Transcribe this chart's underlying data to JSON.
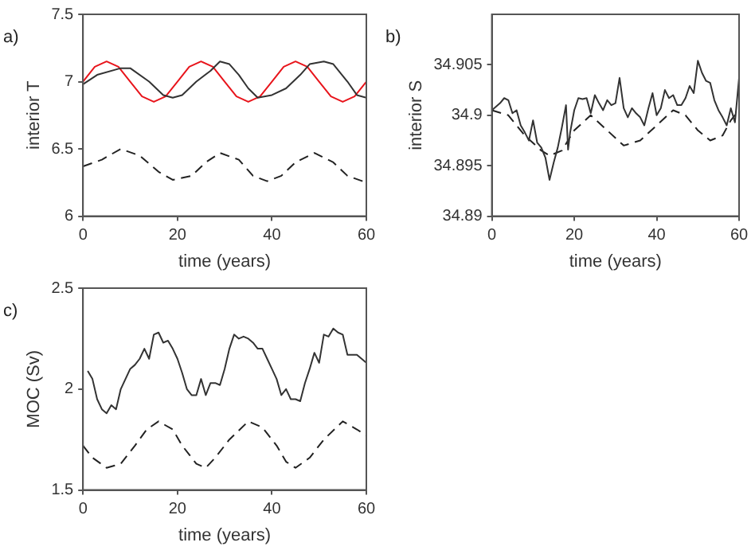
{
  "chart_data": [
    {
      "type": "line",
      "annotations": [
        "a)"
      ],
      "xlabel": "time (years)",
      "ylabel": "interior T",
      "xlim": [
        0,
        60
      ],
      "xticks": [
        0,
        20,
        40,
        60
      ],
      "ylim": [
        6,
        7.5
      ],
      "yticks": [
        6,
        6.5,
        7,
        7.5
      ],
      "series": [
        {
          "color": "#333333",
          "line_style": "solid",
          "x": [
            0,
            3,
            8,
            10,
            14,
            17,
            19,
            21,
            24,
            27,
            29,
            31,
            33,
            35,
            37,
            40,
            43,
            46,
            48,
            51,
            53,
            56,
            58,
            60
          ],
          "values": [
            6.98,
            7.05,
            7.1,
            7.1,
            7.0,
            6.9,
            6.88,
            6.9,
            7.0,
            7.08,
            7.15,
            7.13,
            7.05,
            6.95,
            6.88,
            6.9,
            6.95,
            7.05,
            7.13,
            7.15,
            7.13,
            7.0,
            6.9,
            6.88
          ]
        },
        {
          "color": "#e8141b",
          "line_style": "solid",
          "x": [
            0,
            2.5,
            5,
            7.5,
            10,
            12.5,
            15,
            17.5,
            20,
            22.5,
            25,
            27.5,
            30,
            32.5,
            35,
            37.5,
            40,
            42.5,
            45,
            47.5,
            50,
            52.5,
            55,
            57.5,
            60
          ],
          "values": [
            7.0,
            7.11,
            7.15,
            7.11,
            7.0,
            6.89,
            6.85,
            6.89,
            7.0,
            7.11,
            7.15,
            7.11,
            7.0,
            6.89,
            6.85,
            6.89,
            7.0,
            7.11,
            7.15,
            7.11,
            7.0,
            6.89,
            6.85,
            6.89,
            7.0
          ]
        },
        {
          "color": "#222222",
          "line_style": "dashed",
          "x": [
            0,
            4,
            8,
            12,
            16,
            19,
            23,
            26,
            29,
            33,
            36,
            39,
            42,
            45,
            49,
            53,
            56,
            60
          ],
          "values": [
            6.37,
            6.42,
            6.5,
            6.45,
            6.33,
            6.27,
            6.3,
            6.4,
            6.47,
            6.42,
            6.3,
            6.26,
            6.3,
            6.4,
            6.47,
            6.4,
            6.3,
            6.25
          ]
        }
      ]
    },
    {
      "type": "line",
      "annotations": [
        "b)"
      ],
      "xlabel": "time (years)",
      "ylabel": "interior S",
      "xlim": [
        0,
        60
      ],
      "xticks": [
        0,
        20,
        40,
        60
      ],
      "ylim": [
        34.89,
        34.91
      ],
      "yticks": [
        34.89,
        34.895,
        34.9,
        34.905
      ],
      "series": [
        {
          "color": "#333333",
          "line_style": "solid",
          "x": [
            0,
            2,
            3,
            4,
            5,
            6,
            7,
            8,
            9,
            10,
            11,
            12,
            13,
            14,
            15,
            16,
            17,
            18,
            18.5,
            19,
            20,
            21,
            22,
            23,
            24,
            25,
            26,
            27,
            28,
            29,
            30,
            31,
            32,
            33,
            34,
            35,
            36,
            37,
            38,
            39,
            40,
            41,
            42,
            43,
            44,
            45,
            46,
            47,
            48,
            49,
            50,
            51,
            52,
            53,
            54,
            55,
            56,
            57,
            58,
            59,
            60
          ],
          "values": [
            34.9005,
            34.9012,
            34.9017,
            34.9015,
            34.9002,
            34.9005,
            34.899,
            34.8983,
            34.8975,
            34.8995,
            34.8973,
            34.8968,
            34.8958,
            34.8936,
            34.8953,
            34.8968,
            34.8988,
            34.901,
            34.8966,
            34.8983,
            34.9005,
            34.9017,
            34.9016,
            34.9017,
            34.9002,
            34.902,
            34.9012,
            34.9005,
            34.9015,
            34.901,
            34.9012,
            34.9037,
            34.9007,
            34.8998,
            34.9007,
            34.9002,
            34.8998,
            34.899,
            34.9007,
            34.9022,
            34.9,
            34.9007,
            34.9025,
            34.9017,
            34.902,
            34.901,
            34.901,
            34.9017,
            34.9029,
            34.9022,
            34.9054,
            34.9042,
            34.9034,
            34.9032,
            34.9015,
            34.9005,
            34.8998,
            34.899,
            34.9007,
            34.8993,
            34.9037
          ]
        },
        {
          "color": "#222222",
          "line_style": "dashed",
          "x": [
            0,
            4,
            8,
            12,
            14,
            17,
            20,
            24,
            28,
            32,
            36,
            40,
            44,
            47,
            50,
            53,
            56,
            58,
            60
          ],
          "values": [
            34.9005,
            34.9,
            34.898,
            34.8965,
            34.896,
            34.8965,
            34.8985,
            34.9,
            34.8985,
            34.897,
            34.8975,
            34.899,
            34.9005,
            34.9,
            34.8985,
            34.8975,
            34.898,
            34.8995,
            34.9005
          ]
        }
      ]
    },
    {
      "type": "line",
      "annotations": [
        "c)"
      ],
      "xlabel": "time (years)",
      "ylabel": "MOC (Sv)",
      "xlim": [
        0,
        60
      ],
      "xticks": [
        0,
        20,
        40,
        60
      ],
      "ylim": [
        1.5,
        2.5
      ],
      "yticks": [
        1.5,
        2,
        2.5
      ],
      "series": [
        {
          "color": "#333333",
          "line_style": "solid",
          "x": [
            1,
            2,
            3,
            4,
            5,
            6,
            7,
            8,
            10,
            11,
            12,
            13,
            14,
            15,
            16,
            17,
            18,
            19,
            20,
            21,
            22,
            23,
            24,
            25,
            26,
            27,
            28,
            29,
            30,
            31,
            32,
            33,
            34,
            35,
            36,
            37,
            38,
            39,
            40,
            41,
            42,
            43,
            44,
            45,
            46,
            47,
            48,
            49,
            50,
            51,
            52,
            53,
            54,
            55,
            56,
            57,
            58,
            59,
            60
          ],
          "values": [
            2.09,
            2.05,
            1.95,
            1.9,
            1.88,
            1.92,
            1.9,
            2.0,
            2.1,
            2.12,
            2.15,
            2.2,
            2.15,
            2.27,
            2.28,
            2.23,
            2.24,
            2.2,
            2.15,
            2.08,
            2.0,
            1.97,
            1.97,
            2.05,
            1.97,
            2.03,
            2.03,
            2.02,
            2.1,
            2.2,
            2.27,
            2.25,
            2.26,
            2.25,
            2.23,
            2.2,
            2.2,
            2.15,
            2.1,
            2.05,
            1.97,
            2.0,
            1.95,
            1.95,
            1.94,
            2.03,
            2.1,
            2.18,
            2.13,
            2.27,
            2.26,
            2.3,
            2.28,
            2.27,
            2.17,
            2.17,
            2.17,
            2.15,
            2.13
          ]
        },
        {
          "color": "#222222",
          "line_style": "dashed",
          "x": [
            0,
            2,
            5,
            8,
            11,
            13.5,
            16,
            19,
            21,
            24,
            26,
            28,
            31,
            35,
            38,
            41,
            43,
            45,
            48,
            51,
            55,
            58,
            60
          ],
          "values": [
            1.72,
            1.66,
            1.61,
            1.63,
            1.72,
            1.8,
            1.84,
            1.8,
            1.72,
            1.63,
            1.61,
            1.66,
            1.75,
            1.84,
            1.81,
            1.72,
            1.64,
            1.61,
            1.66,
            1.75,
            1.84,
            1.8,
            1.77
          ]
        }
      ]
    }
  ]
}
